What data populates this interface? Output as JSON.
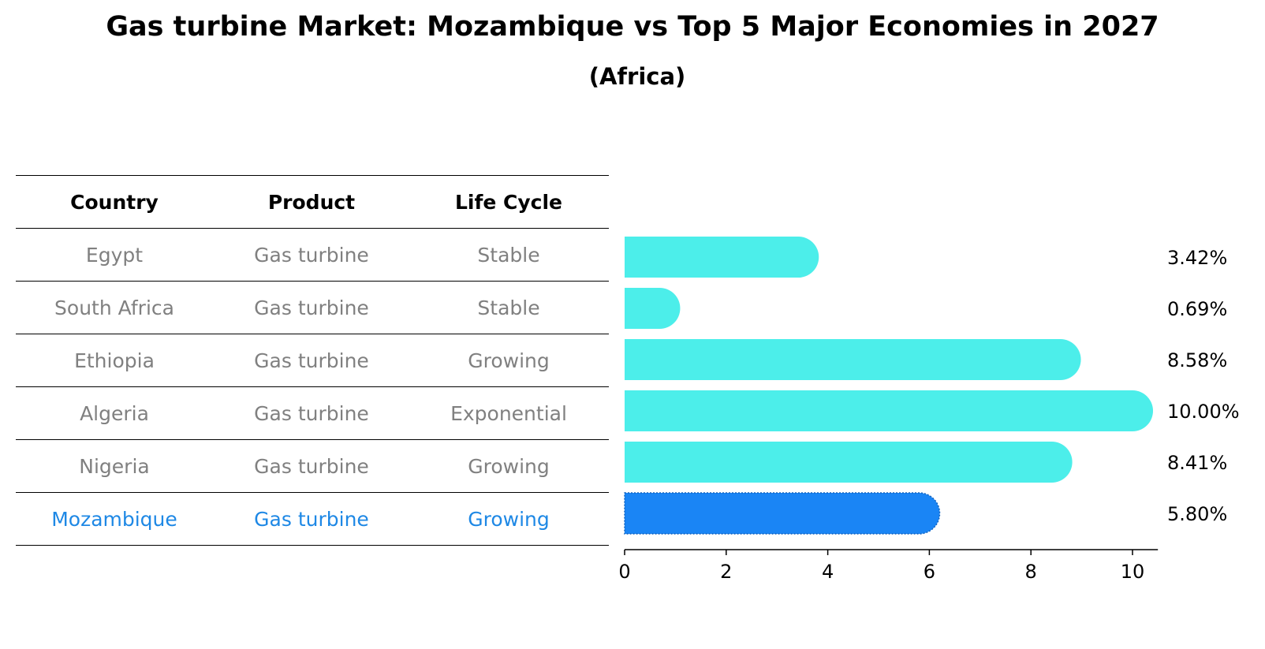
{
  "title": "Gas turbine Market: Mozambique vs Top 5 Major Economies in 2027",
  "subtitle": "(Africa)",
  "table": {
    "headers": [
      "Country",
      "Product",
      "Life Cycle"
    ],
    "rows": [
      {
        "country": "Egypt",
        "product": "Gas turbine",
        "life_cycle": "Stable"
      },
      {
        "country": "South Africa",
        "product": "Gas turbine",
        "life_cycle": "Stable"
      },
      {
        "country": "Ethiopia",
        "product": "Gas turbine",
        "life_cycle": "Growing"
      },
      {
        "country": "Algeria",
        "product": "Gas turbine",
        "life_cycle": "Exponential"
      },
      {
        "country": "Nigeria",
        "product": "Gas turbine",
        "life_cycle": "Growing"
      },
      {
        "country": "Mozambique",
        "product": "Gas turbine",
        "life_cycle": "Growing"
      }
    ]
  },
  "chart_data": {
    "type": "bar",
    "orientation": "horizontal",
    "categories": [
      "Egypt",
      "South Africa",
      "Ethiopia",
      "Algeria",
      "Nigeria",
      "Mozambique"
    ],
    "values": [
      3.42,
      0.69,
      8.58,
      10.0,
      8.41,
      5.8
    ],
    "value_labels": [
      "3.42%",
      "0.69%",
      "8.58%",
      "10.00%",
      "8.41%",
      "5.80%"
    ],
    "highlight": "Mozambique",
    "xlim": [
      0,
      10.5
    ],
    "xticks": [
      0,
      2,
      4,
      6,
      8,
      10
    ],
    "grid": false,
    "colors": {
      "default": "#4ceeea",
      "highlight": "#1a85f5",
      "highlight_text": "#1e88e5"
    }
  }
}
